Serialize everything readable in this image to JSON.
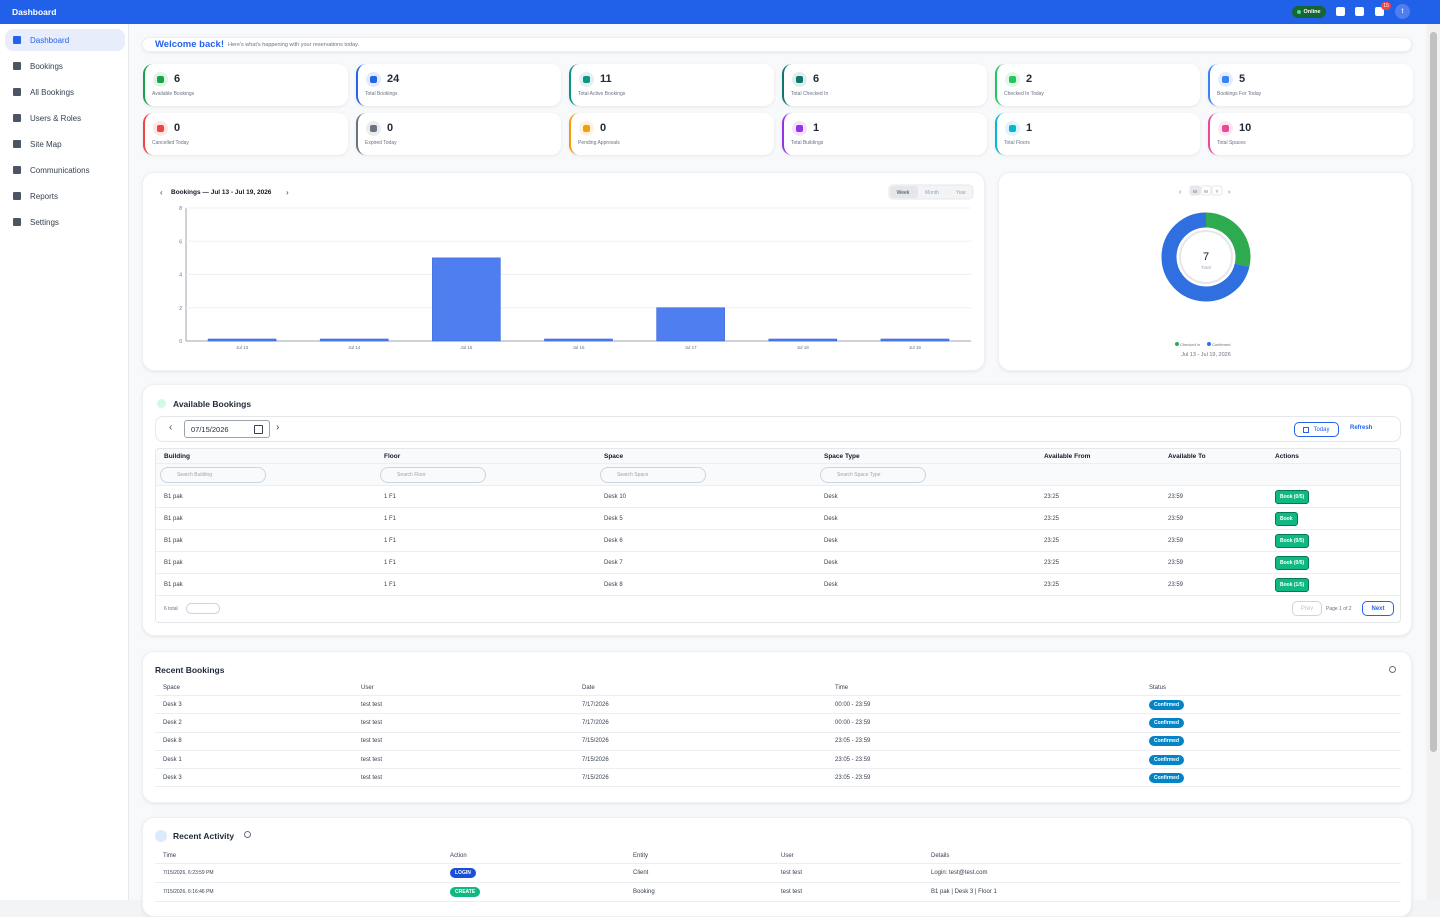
{
  "topbar": {
    "title": "Dashboard",
    "status": "Online",
    "notifications": 15,
    "avatar": "t"
  },
  "sidebar": {
    "items": [
      "Dashboard",
      "Bookings",
      "All Bookings",
      "Users & Roles",
      "Site Map",
      "Communications",
      "Reports",
      "Settings"
    ]
  },
  "welcome": {
    "title": "Welcome back!",
    "subtitle": "Here's what's happening with your reservations today."
  },
  "stats": [
    {
      "value": 6,
      "label": "Available Bookings",
      "color": "#16a34a"
    },
    {
      "value": 24,
      "label": "Total Bookings",
      "color": "#2563eb"
    },
    {
      "value": 11,
      "label": "Total Active Bookings",
      "color": "#0d9488"
    },
    {
      "value": 6,
      "label": "Total Checked In",
      "color": "#0f766e"
    },
    {
      "value": 2,
      "label": "Checked In Today",
      "color": "#22c55e"
    },
    {
      "value": 5,
      "label": "Bookings For Today",
      "color": "#3b82f6"
    },
    {
      "value": 0,
      "label": "Cancelled Today",
      "color": "#ef4444"
    },
    {
      "value": 0,
      "label": "Expired Today",
      "color": "#6b7280"
    },
    {
      "value": 0,
      "label": "Pending Approvals",
      "color": "#f59e0b"
    },
    {
      "value": 1,
      "label": "Total Buildings",
      "color": "#9333ea"
    },
    {
      "value": 1,
      "label": "Total Floors",
      "color": "#06b6d4"
    },
    {
      "value": 10,
      "label": "Total Spaces",
      "color": "#ec4899"
    }
  ],
  "chart_data": [
    {
      "type": "bar",
      "title": "Bookings — Jul 13 - Jul 19, 2026",
      "categories": [
        "Jul 13",
        "Jul 14",
        "Jul 15",
        "Jul 16",
        "Jul 17",
        "Jul 18",
        "Jul 19"
      ],
      "values": [
        0,
        0,
        5,
        0,
        2,
        0,
        0
      ],
      "color": "#4f7ef0",
      "ylim": [
        0,
        8
      ],
      "yticks": [
        0,
        2,
        4,
        6,
        8
      ],
      "grid": true,
      "ranges": [
        "Week",
        "Month",
        "Year"
      ]
    },
    {
      "type": "donut",
      "subtitle": "Jul 13 - Jul 19, 2026",
      "categories": [
        "Checked In",
        "Confirmed"
      ],
      "values": [
        2,
        5
      ],
      "colors": [
        "#2eaa4f",
        "#2f6fe0"
      ],
      "total": 7,
      "total_label": "Total",
      "ranges": [
        "W",
        "M",
        "Y"
      ]
    }
  ],
  "available_bookings": {
    "title": "Available Bookings",
    "date": "07/15/2026",
    "today": "Today",
    "refresh": "Refresh",
    "columns": [
      "Building",
      "Floor",
      "Space",
      "Space Type",
      "Available From",
      "Available To",
      "Actions"
    ],
    "search": [
      "Search Building",
      "Search Floor",
      "Search Space",
      "Search Space Type"
    ],
    "rows": [
      [
        "B1 pak",
        "1 F1",
        "Desk 10",
        "Desk",
        "23:25",
        "23:59",
        "Book (0/5)"
      ],
      [
        "B1 pak",
        "1 F1",
        "Desk 5",
        "Desk",
        "23:25",
        "23:59",
        "Book"
      ],
      [
        "B1 pak",
        "1 F1",
        "Desk 6",
        "Desk",
        "23:25",
        "23:59",
        "Book (0/5)"
      ],
      [
        "B1 pak",
        "1 F1",
        "Desk 7",
        "Desk",
        "23:25",
        "23:59",
        "Book (0/5)"
      ],
      [
        "B1 pak",
        "1 F1",
        "Desk 8",
        "Desk",
        "23:25",
        "23:59",
        "Book (1/5)"
      ]
    ],
    "total": "6 total",
    "prev": "Prev",
    "page": "Page 1 of 2",
    "next": "Next"
  },
  "recent_bookings": {
    "title": "Recent Bookings",
    "columns": [
      "Space",
      "User",
      "Date",
      "Time",
      "Status"
    ],
    "rows": [
      [
        "Desk 3",
        "test test",
        "7/17/2026",
        "00:00 - 23:59",
        "Confirmed"
      ],
      [
        "Desk 2",
        "test test",
        "7/17/2026",
        "00:00 - 23:59",
        "Confirmed"
      ],
      [
        "Desk 8",
        "test test",
        "7/15/2026",
        "23:05 - 23:59",
        "Confirmed"
      ],
      [
        "Desk 1",
        "test test",
        "7/15/2026",
        "23:05 - 23:59",
        "Confirmed"
      ],
      [
        "Desk 3",
        "test test",
        "7/15/2026",
        "23:05 - 23:59",
        "Confirmed"
      ]
    ]
  },
  "recent_activity": {
    "title": "Recent Activity",
    "columns": [
      "Time",
      "Action",
      "Entity",
      "User",
      "Details"
    ],
    "rows": [
      [
        "7/15/2026, 6:23:59 PM",
        "LOGIN",
        "Client",
        "test test",
        "Login: test@test.com"
      ],
      [
        "7/15/2026, 6:16:46 PM",
        "CREATE",
        "Booking",
        "test test",
        "B1 pak | Desk 3 | Floor 1"
      ]
    ]
  }
}
